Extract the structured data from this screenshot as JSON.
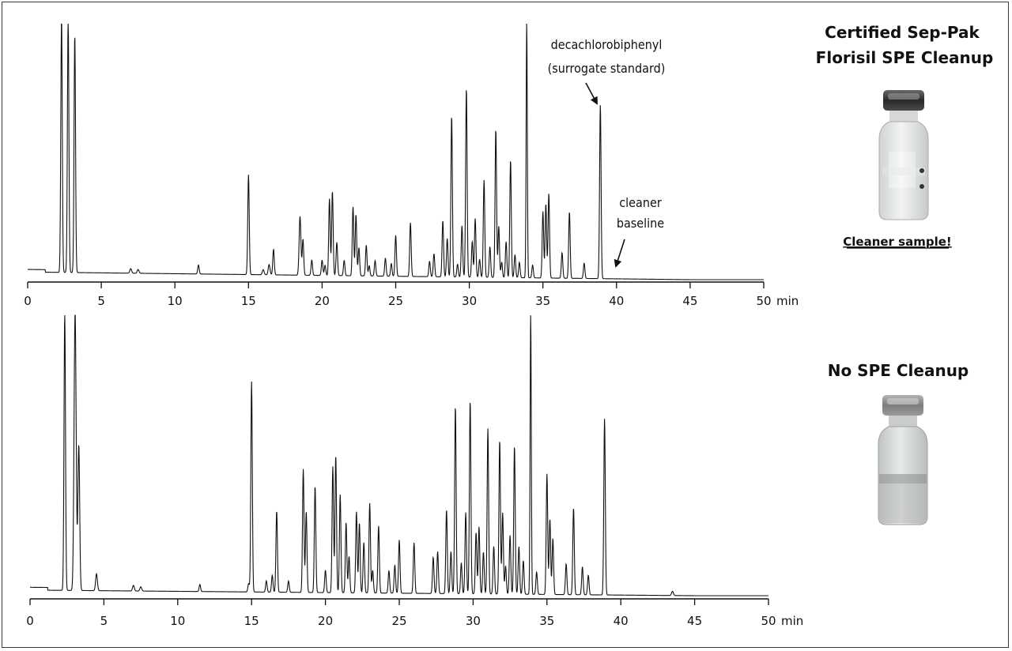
{
  "chart_data": [
    {
      "type": "line",
      "title": "Certified Sep-Pak Florisil SPE Cleanup",
      "xlabel": "min",
      "xlim": [
        0,
        50
      ],
      "x_ticks": [
        "0",
        "5",
        "10",
        "15",
        "20",
        "25",
        "30",
        "35",
        "40",
        "45",
        "50"
      ],
      "baseline": {
        "start": 0.03,
        "end": 0.0
      },
      "peaks": [
        [
          2.3,
          1.0,
          0.05
        ],
        [
          2.75,
          1.0,
          0.05
        ],
        [
          3.2,
          0.93,
          0.05
        ],
        [
          7.0,
          0.018,
          0.06
        ],
        [
          7.5,
          0.015,
          0.06
        ],
        [
          11.6,
          0.035,
          0.05
        ],
        [
          15.0,
          0.39,
          0.05
        ],
        [
          16.0,
          0.02,
          0.06
        ],
        [
          16.4,
          0.04,
          0.06
        ],
        [
          16.7,
          0.1,
          0.05
        ],
        [
          18.5,
          0.23,
          0.06
        ],
        [
          18.7,
          0.14,
          0.05
        ],
        [
          19.3,
          0.06,
          0.05
        ],
        [
          20.0,
          0.06,
          0.05
        ],
        [
          20.2,
          0.04,
          0.05
        ],
        [
          20.5,
          0.3,
          0.05
        ],
        [
          20.7,
          0.33,
          0.05
        ],
        [
          21.0,
          0.13,
          0.05
        ],
        [
          21.5,
          0.06,
          0.05
        ],
        [
          22.1,
          0.27,
          0.05
        ],
        [
          22.3,
          0.24,
          0.05
        ],
        [
          22.5,
          0.11,
          0.05
        ],
        [
          23.0,
          0.12,
          0.05
        ],
        [
          23.2,
          0.04,
          0.05
        ],
        [
          23.6,
          0.06,
          0.05
        ],
        [
          24.3,
          0.07,
          0.05
        ],
        [
          24.7,
          0.05,
          0.05
        ],
        [
          25.0,
          0.16,
          0.05
        ],
        [
          26.0,
          0.21,
          0.05
        ],
        [
          27.3,
          0.06,
          0.05
        ],
        [
          27.6,
          0.09,
          0.05
        ],
        [
          28.2,
          0.22,
          0.05
        ],
        [
          28.5,
          0.15,
          0.05
        ],
        [
          28.8,
          0.63,
          0.05
        ],
        [
          29.2,
          0.05,
          0.05
        ],
        [
          29.5,
          0.2,
          0.05
        ],
        [
          29.8,
          0.74,
          0.05
        ],
        [
          30.2,
          0.14,
          0.05
        ],
        [
          30.4,
          0.23,
          0.05
        ],
        [
          30.7,
          0.07,
          0.05
        ],
        [
          31.0,
          0.38,
          0.05
        ],
        [
          31.4,
          0.12,
          0.05
        ],
        [
          31.8,
          0.58,
          0.05
        ],
        [
          32.0,
          0.2,
          0.05
        ],
        [
          32.2,
          0.06,
          0.05
        ],
        [
          32.5,
          0.14,
          0.05
        ],
        [
          32.8,
          0.46,
          0.05
        ],
        [
          33.1,
          0.09,
          0.05
        ],
        [
          33.4,
          0.06,
          0.05
        ],
        [
          33.9,
          1.0,
          0.04
        ],
        [
          34.3,
          0.05,
          0.05
        ],
        [
          35.0,
          0.26,
          0.05
        ],
        [
          35.2,
          0.29,
          0.05
        ],
        [
          35.4,
          0.33,
          0.05
        ],
        [
          36.3,
          0.1,
          0.05
        ],
        [
          36.8,
          0.26,
          0.05
        ],
        [
          37.8,
          0.06,
          0.05
        ],
        [
          38.9,
          0.68,
          0.05
        ]
      ]
    },
    {
      "type": "line",
      "title": "No SPE Cleanup",
      "xlabel": "min",
      "xlim": [
        0,
        50
      ],
      "x_ticks": [
        "0",
        "5",
        "10",
        "15",
        "20",
        "25",
        "30",
        "35",
        "40",
        "45",
        "50"
      ],
      "baseline": {
        "start": 0.02,
        "end": 0.0
      },
      "peaks": [
        [
          2.35,
          1.0,
          0.05
        ],
        [
          3.05,
          1.0,
          0.07
        ],
        [
          3.3,
          0.52,
          0.06
        ],
        [
          4.5,
          0.06,
          0.06
        ],
        [
          7.0,
          0.02,
          0.06
        ],
        [
          7.5,
          0.015,
          0.06
        ],
        [
          11.5,
          0.025,
          0.05
        ],
        [
          14.8,
          0.03,
          0.05
        ],
        [
          15.0,
          0.75,
          0.05
        ],
        [
          16.0,
          0.04,
          0.05
        ],
        [
          16.4,
          0.06,
          0.05
        ],
        [
          16.7,
          0.29,
          0.05
        ],
        [
          17.5,
          0.04,
          0.05
        ],
        [
          18.5,
          0.44,
          0.05
        ],
        [
          18.7,
          0.29,
          0.05
        ],
        [
          19.3,
          0.38,
          0.05
        ],
        [
          20.0,
          0.08,
          0.05
        ],
        [
          20.5,
          0.45,
          0.05
        ],
        [
          20.7,
          0.49,
          0.05
        ],
        [
          21.0,
          0.35,
          0.05
        ],
        [
          21.4,
          0.25,
          0.05
        ],
        [
          21.6,
          0.13,
          0.05
        ],
        [
          22.1,
          0.29,
          0.05
        ],
        [
          22.3,
          0.25,
          0.05
        ],
        [
          22.6,
          0.18,
          0.05
        ],
        [
          23.0,
          0.32,
          0.05
        ],
        [
          23.2,
          0.08,
          0.05
        ],
        [
          23.6,
          0.24,
          0.05
        ],
        [
          24.3,
          0.08,
          0.05
        ],
        [
          24.7,
          0.1,
          0.05
        ],
        [
          25.0,
          0.19,
          0.05
        ],
        [
          26.0,
          0.18,
          0.05
        ],
        [
          27.3,
          0.13,
          0.05
        ],
        [
          27.6,
          0.15,
          0.05
        ],
        [
          28.2,
          0.3,
          0.05
        ],
        [
          28.5,
          0.15,
          0.05
        ],
        [
          28.8,
          0.67,
          0.05
        ],
        [
          29.2,
          0.11,
          0.05
        ],
        [
          29.5,
          0.29,
          0.05
        ],
        [
          29.8,
          0.69,
          0.05
        ],
        [
          30.2,
          0.22,
          0.05
        ],
        [
          30.4,
          0.24,
          0.05
        ],
        [
          30.7,
          0.15,
          0.05
        ],
        [
          31.0,
          0.59,
          0.05
        ],
        [
          31.4,
          0.17,
          0.05
        ],
        [
          31.8,
          0.55,
          0.05
        ],
        [
          32.0,
          0.29,
          0.05
        ],
        [
          32.2,
          0.1,
          0.05
        ],
        [
          32.5,
          0.21,
          0.05
        ],
        [
          32.8,
          0.53,
          0.05
        ],
        [
          33.1,
          0.17,
          0.05
        ],
        [
          33.4,
          0.12,
          0.05
        ],
        [
          33.9,
          1.0,
          0.04
        ],
        [
          34.3,
          0.08,
          0.05
        ],
        [
          35.0,
          0.43,
          0.05
        ],
        [
          35.2,
          0.27,
          0.05
        ],
        [
          35.4,
          0.2,
          0.05
        ],
        [
          36.3,
          0.11,
          0.05
        ],
        [
          36.8,
          0.31,
          0.05
        ],
        [
          37.4,
          0.1,
          0.05
        ],
        [
          37.8,
          0.07,
          0.05
        ],
        [
          38.9,
          0.63,
          0.05
        ],
        [
          43.5,
          0.015,
          0.06
        ]
      ]
    }
  ],
  "annotations": {
    "surrogate_line1": "decachlorobiphenyl",
    "surrogate_line2": "(surrogate standard)",
    "baseline_line1": "cleaner",
    "baseline_line2": "baseline"
  },
  "panels": {
    "top_title_line1": "Certified Sep-Pak",
    "top_title_line2": "Florisil SPE Cleanup",
    "top_caption": "Cleaner sample!",
    "bottom_title": "No SPE Cleanup"
  }
}
